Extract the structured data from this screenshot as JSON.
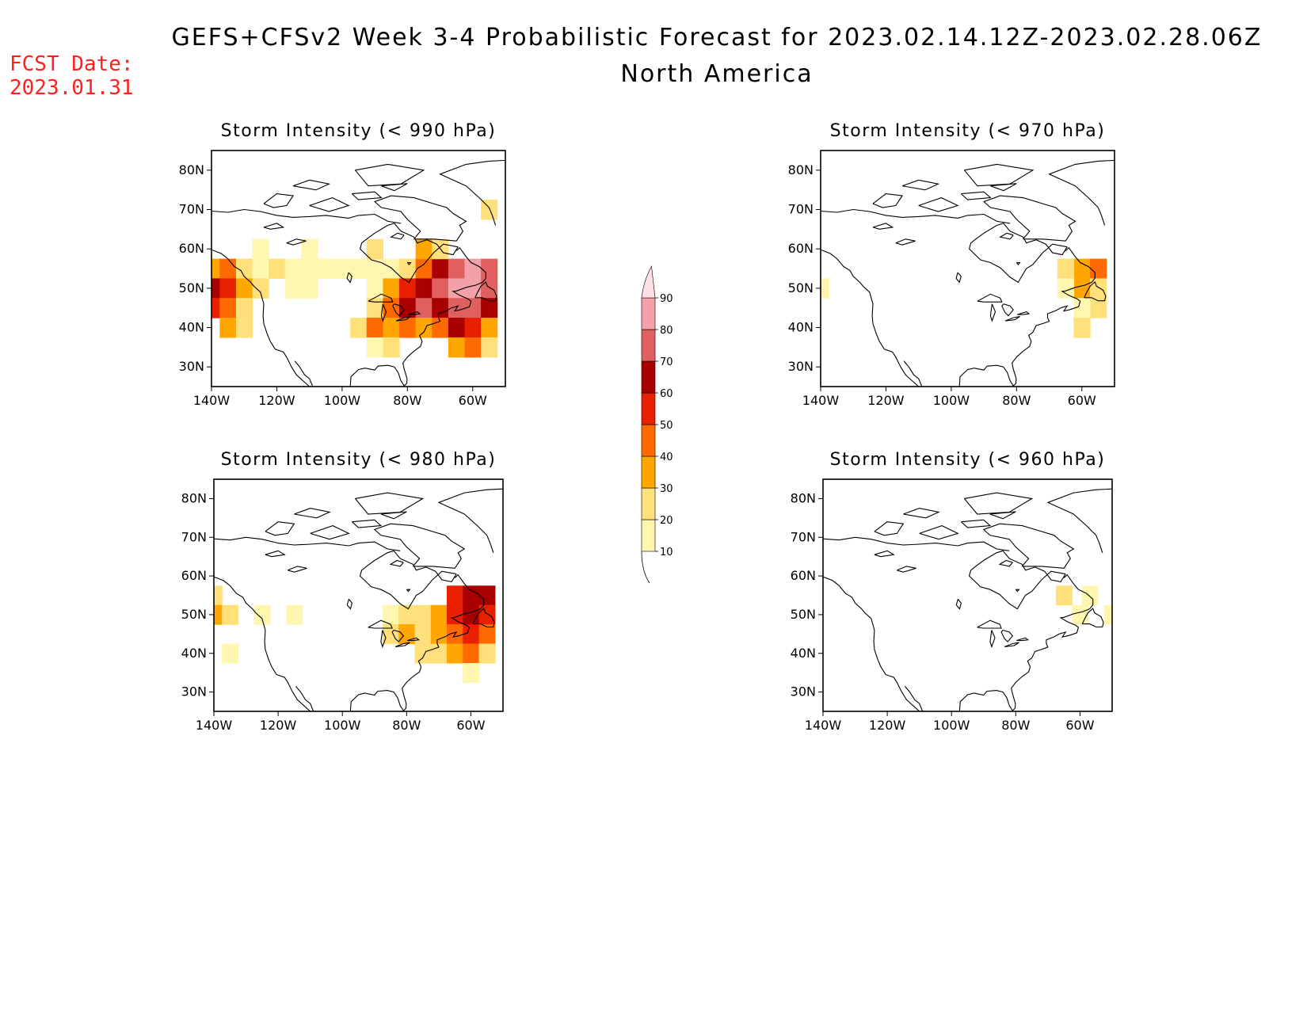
{
  "figure": {
    "title": "GEFS+CFSv2 Week 3-4 Probabilistic Forecast for 2023.02.14.12Z-2023.02.28.06Z",
    "subtitle": "North America",
    "fcst_label": "FCST Date:",
    "fcst_date": "2023.01.31"
  },
  "axes": {
    "lat_labels": [
      "80N",
      "70N",
      "60N",
      "50N",
      "40N",
      "30N"
    ],
    "lat_values": [
      80,
      70,
      60,
      50,
      40,
      30
    ],
    "lon_labels": [
      "140W",
      "120W",
      "100W",
      "80W",
      "60W"
    ],
    "lon_values": [
      -140,
      -120,
      -100,
      -80,
      -60
    ],
    "lon_range": [
      -140,
      -50
    ],
    "lat_range": [
      25,
      85
    ]
  },
  "colorbar": {
    "levels": [
      "10",
      "20",
      "30",
      "40",
      "50",
      "60",
      "70",
      "80",
      "90"
    ],
    "level_values": [
      10,
      20,
      30,
      40,
      50,
      60,
      70,
      80,
      90
    ],
    "colors": [
      "#fff6b0",
      "#ffe07a",
      "#ffa600",
      "#ff6a00",
      "#e82000",
      "#a80000",
      "#e06060",
      "#f4a0a8",
      "#fde0e4"
    ]
  },
  "panels": [
    {
      "id": "p990",
      "title": "Storm Intensity (< 990 hPa)"
    },
    {
      "id": "p970",
      "title": "Storm Intensity (< 970 hPa)"
    },
    {
      "id": "p980",
      "title": "Storm Intensity (< 980 hPa)"
    },
    {
      "id": "p960",
      "title": "Storm Intensity (< 960 hPa)"
    }
  ],
  "chart_data": {
    "type": "heatmap",
    "variable": "probability (%)",
    "grid_step_deg": 5,
    "panels": [
      {
        "title": "Storm Intensity (< 990 hPa)",
        "cells": [
          [
            -140,
            55,
            30
          ],
          [
            -135,
            55,
            40
          ],
          [
            -130,
            55,
            20
          ],
          [
            -125,
            55,
            10
          ],
          [
            -120,
            55,
            20
          ],
          [
            -115,
            55,
            10
          ],
          [
            -110,
            55,
            10
          ],
          [
            -105,
            55,
            10
          ],
          [
            -100,
            55,
            10
          ],
          [
            -95,
            55,
            10
          ],
          [
            -90,
            55,
            10
          ],
          [
            -85,
            55,
            10
          ],
          [
            -80,
            55,
            20
          ],
          [
            -75,
            55,
            40
          ],
          [
            -70,
            55,
            60
          ],
          [
            -65,
            55,
            70
          ],
          [
            -60,
            55,
            80
          ],
          [
            -55,
            55,
            70
          ],
          [
            -140,
            50,
            60
          ],
          [
            -135,
            50,
            50
          ],
          [
            -130,
            50,
            30
          ],
          [
            -125,
            50,
            20
          ],
          [
            -115,
            50,
            10
          ],
          [
            -110,
            50,
            10
          ],
          [
            -90,
            50,
            10
          ],
          [
            -85,
            50,
            30
          ],
          [
            -80,
            50,
            50
          ],
          [
            -75,
            50,
            60
          ],
          [
            -70,
            50,
            70
          ],
          [
            -65,
            50,
            80
          ],
          [
            -60,
            50,
            80
          ],
          [
            -55,
            50,
            70
          ],
          [
            -140,
            45,
            50
          ],
          [
            -135,
            45,
            40
          ],
          [
            -130,
            45,
            20
          ],
          [
            -90,
            45,
            20
          ],
          [
            -85,
            45,
            40
          ],
          [
            -80,
            45,
            60
          ],
          [
            -75,
            45,
            70
          ],
          [
            -70,
            45,
            60
          ],
          [
            -65,
            45,
            70
          ],
          [
            -60,
            45,
            70
          ],
          [
            -55,
            45,
            60
          ],
          [
            -135,
            40,
            30
          ],
          [
            -130,
            40,
            20
          ],
          [
            -95,
            40,
            20
          ],
          [
            -90,
            40,
            40
          ],
          [
            -85,
            40,
            30
          ],
          [
            -80,
            40,
            40
          ],
          [
            -75,
            40,
            30
          ],
          [
            -70,
            40,
            40
          ],
          [
            -65,
            40,
            60
          ],
          [
            -60,
            40,
            50
          ],
          [
            -55,
            40,
            30
          ],
          [
            -90,
            35,
            10
          ],
          [
            -85,
            35,
            20
          ],
          [
            -65,
            35,
            30
          ],
          [
            -60,
            35,
            40
          ],
          [
            -55,
            35,
            20
          ],
          [
            -125,
            60,
            10
          ],
          [
            -110,
            60,
            10
          ],
          [
            -90,
            60,
            20
          ],
          [
            -75,
            60,
            30
          ],
          [
            -70,
            60,
            20
          ],
          [
            -55,
            70,
            20
          ]
        ]
      },
      {
        "title": "Storm Intensity (< 970 hPa)",
        "cells": [
          [
            -60,
            55,
            30
          ],
          [
            -55,
            55,
            40
          ],
          [
            -65,
            55,
            20
          ],
          [
            -60,
            50,
            30
          ],
          [
            -55,
            50,
            20
          ],
          [
            -65,
            50,
            10
          ],
          [
            -55,
            45,
            20
          ],
          [
            -60,
            45,
            10
          ],
          [
            -60,
            40,
            20
          ],
          [
            -140,
            50,
            10
          ]
        ]
      },
      {
        "title": "Storm Intensity (< 980 hPa)",
        "cells": [
          [
            -140,
            55,
            20
          ],
          [
            -140,
            50,
            30
          ],
          [
            -135,
            50,
            20
          ],
          [
            -125,
            50,
            10
          ],
          [
            -115,
            50,
            10
          ],
          [
            -85,
            50,
            10
          ],
          [
            -80,
            50,
            20
          ],
          [
            -75,
            50,
            20
          ],
          [
            -70,
            50,
            30
          ],
          [
            -65,
            55,
            50
          ],
          [
            -60,
            55,
            60
          ],
          [
            -55,
            55,
            60
          ],
          [
            -65,
            50,
            50
          ],
          [
            -60,
            50,
            60
          ],
          [
            -55,
            50,
            50
          ],
          [
            -85,
            45,
            20
          ],
          [
            -80,
            45,
            30
          ],
          [
            -75,
            45,
            20
          ],
          [
            -70,
            45,
            30
          ],
          [
            -65,
            45,
            40
          ],
          [
            -60,
            45,
            50
          ],
          [
            -55,
            45,
            40
          ],
          [
            -75,
            40,
            20
          ],
          [
            -70,
            40,
            20
          ],
          [
            -65,
            40,
            30
          ],
          [
            -60,
            40,
            40
          ],
          [
            -55,
            40,
            20
          ],
          [
            -60,
            35,
            10
          ],
          [
            -135,
            40,
            10
          ]
        ]
      },
      {
        "title": "Storm Intensity (< 960 hPa)",
        "cells": [
          [
            -65,
            55,
            20
          ],
          [
            -57,
            55,
            10
          ],
          [
            -60,
            50,
            10
          ],
          [
            -50,
            50,
            10
          ]
        ]
      }
    ]
  }
}
